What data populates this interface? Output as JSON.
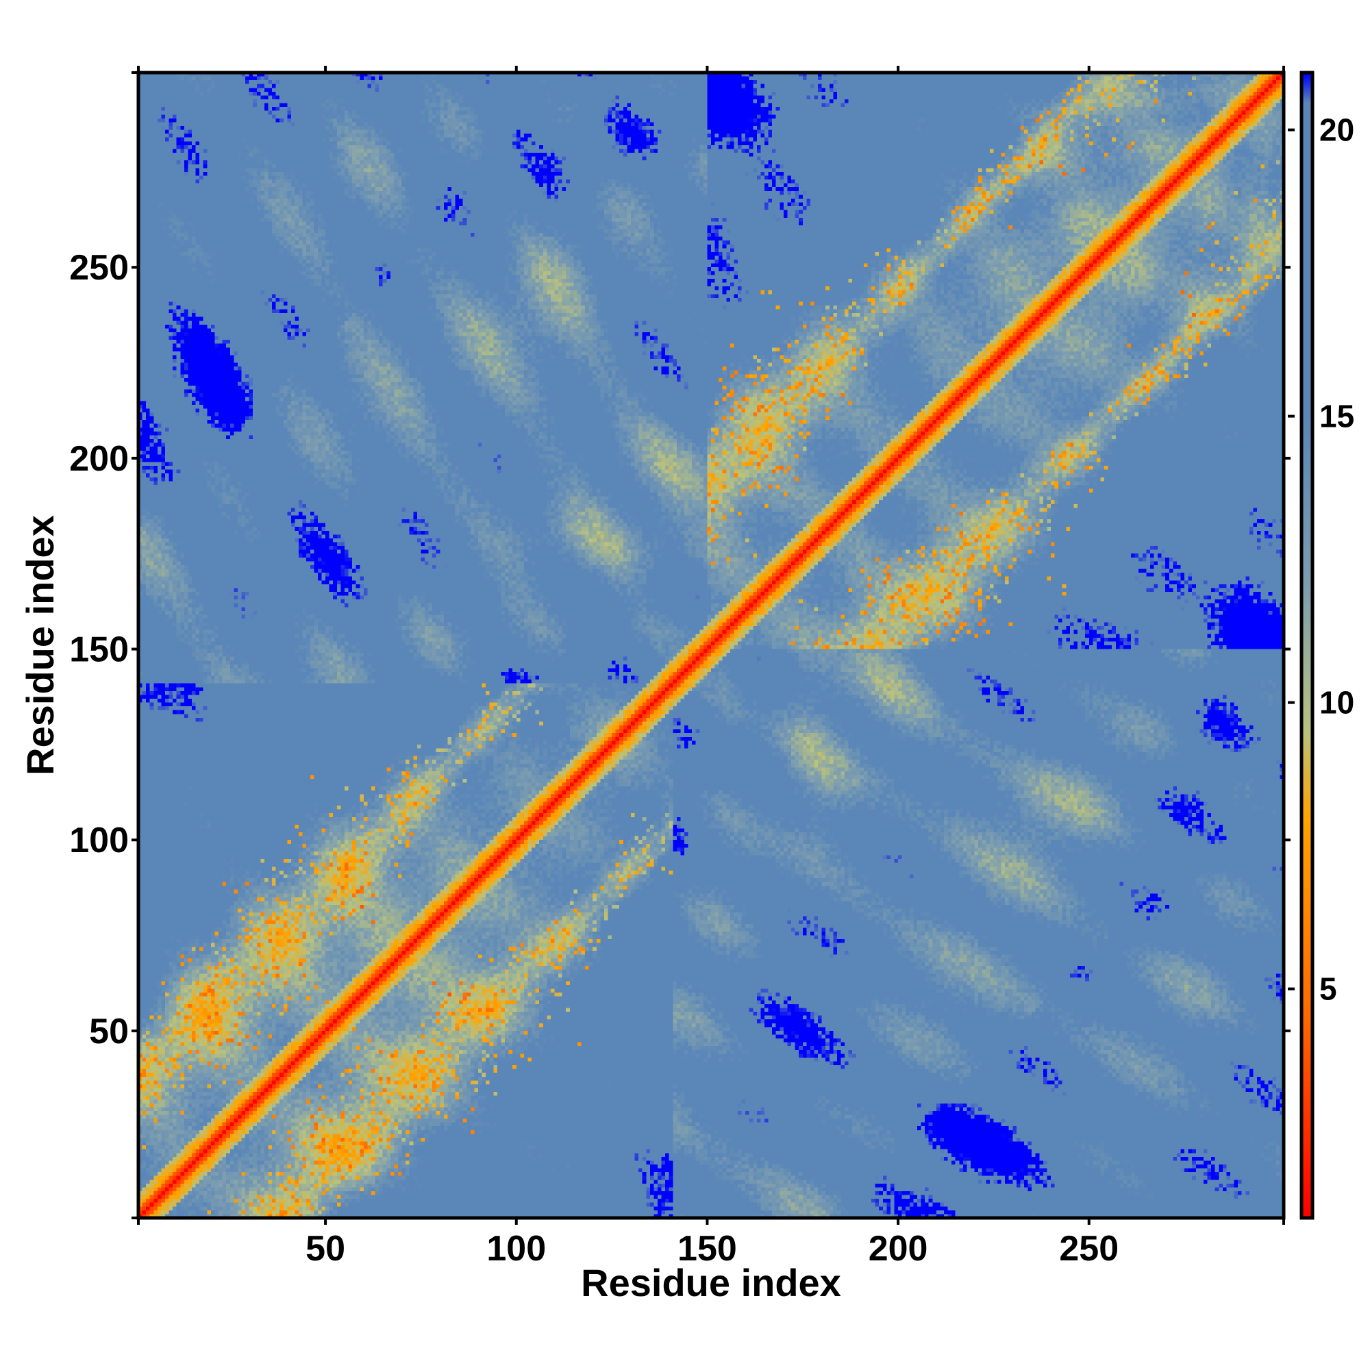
{
  "chart_data": {
    "type": "heatmap",
    "title": "",
    "xlabel": "Residue index",
    "ylabel": "Residue index",
    "xlim": [
      1,
      301
    ],
    "ylim": [
      1,
      301
    ],
    "xticks": [
      50,
      100,
      150,
      200,
      250
    ],
    "yticks": [
      50,
      100,
      150,
      200,
      250
    ],
    "colorbar": {
      "range": [
        1,
        21
      ],
      "ticks": [
        5,
        10,
        15,
        20
      ],
      "colors": [
        {
          "value": 1,
          "color": "#ff0000"
        },
        {
          "value": 4.5,
          "color": "#ff6a00"
        },
        {
          "value": 8,
          "color": "#ffa500"
        },
        {
          "value": 9.5,
          "color": "#b9c27e"
        },
        {
          "value": 12,
          "color": "#7f9faf"
        },
        {
          "value": 15,
          "color": "#5b87b8"
        },
        {
          "value": 20.5,
          "color": "#5b87b8"
        },
        {
          "value": 21,
          "color": "#0000ff"
        }
      ]
    },
    "matrix_description": "Symmetric residue-residue distance matrix; near-zero along the diagonal, two domains (~1-140 and ~150-300) with ring-like contact bands, distances above cutoff shown in blue",
    "domains": [
      [
        1,
        140
      ],
      [
        150,
        300
      ]
    ]
  }
}
